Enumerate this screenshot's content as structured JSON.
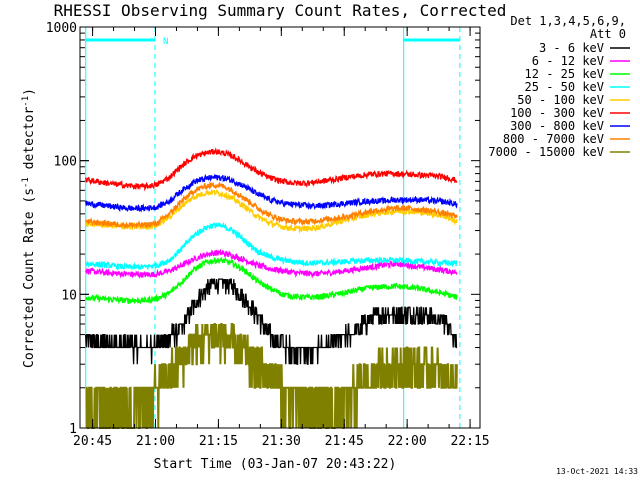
{
  "chart_data": {
    "type": "line",
    "title": "RHESSI Observing Summary Count Rates, Corrected",
    "xlabel": "Start Time (03-Jan-07 20:43:22)",
    "ylabel_main": "Corrected Count Rate (s",
    "ylabel_sup1": "-1",
    "ylabel_mid": " detector",
    "ylabel_sup2": "-1",
    "ylabel_end": ")",
    "yscale": "log",
    "ylim": [
      1,
      1000
    ],
    "xlim_minutes": [
      -1.37,
      94
    ],
    "x_tick_labels": [
      "20:45",
      "21:00",
      "21:15",
      "21:30",
      "21:45",
      "22:00",
      "22:15"
    ],
    "x_ticks_minutes": [
      1.63,
      16.63,
      31.63,
      46.63,
      61.63,
      76.63,
      91.63
    ],
    "y_tick_labels": [
      "1",
      "10",
      "100",
      "1000"
    ],
    "y_ticks": [
      1,
      10,
      100,
      1000
    ],
    "legend_header": [
      "Det 1,3,4,5,6,9,",
      "Att 0"
    ],
    "legend_position": "top-right outside",
    "timestamp": "13-Oct-2021 14:33",
    "marker_N": "N",
    "vertical_lines_minutes": [
      0,
      16.5,
      75.8,
      89.2
    ],
    "series": [
      {
        "name": "3 - 6 keV",
        "color": "#000000",
        "x": [
          0,
          5,
          10,
          14,
          17,
          20,
          23,
          26,
          29,
          31,
          33,
          35,
          38,
          41,
          44,
          47,
          50,
          53,
          56,
          59,
          62,
          65,
          68,
          71,
          74,
          77,
          80,
          83,
          86,
          88.5
        ],
        "y": [
          4.5,
          4.3,
          4.2,
          4.0,
          4.2,
          4.6,
          5.8,
          8.5,
          11.2,
          12.5,
          12.3,
          11.5,
          9.2,
          6.8,
          5.0,
          4.2,
          3.8,
          3.8,
          4.0,
          4.3,
          4.8,
          5.6,
          6.5,
          7.2,
          7.3,
          7.2,
          7.0,
          6.8,
          6.0,
          4.6
        ]
      },
      {
        "name": "6 - 12 keV",
        "color": "#ff00ff",
        "x": [
          0,
          5,
          10,
          14,
          17,
          20,
          23,
          26,
          29,
          31,
          33,
          35,
          38,
          41,
          44,
          47,
          50,
          53,
          56,
          59,
          62,
          65,
          68,
          71,
          74,
          77,
          80,
          83,
          86,
          88.5
        ],
        "y": [
          15,
          14.5,
          14.2,
          14,
          14.2,
          15,
          16.5,
          18.5,
          20,
          20.5,
          20.2,
          19.5,
          18,
          16.5,
          15.5,
          15,
          14.5,
          14.3,
          14.3,
          14.6,
          15,
          15.5,
          16,
          16.5,
          17,
          16.5,
          16,
          15.5,
          15,
          14.5
        ]
      },
      {
        "name": "12 - 25 keV",
        "color": "#00ff00",
        "x": [
          0,
          5,
          10,
          14,
          17,
          20,
          23,
          26,
          29,
          31,
          33,
          35,
          38,
          41,
          44,
          47,
          50,
          53,
          56,
          59,
          62,
          65,
          68,
          71,
          74,
          77,
          80,
          83,
          86,
          88.5
        ],
        "y": [
          9.5,
          9.2,
          9.0,
          9.0,
          9.3,
          10.2,
          12.5,
          15.5,
          17.5,
          18,
          17.8,
          17,
          15,
          12.5,
          11,
          10,
          9.6,
          9.5,
          9.6,
          9.9,
          10.3,
          10.8,
          11.2,
          11.4,
          11.5,
          11.3,
          11,
          10.5,
          10,
          9.5
        ]
      },
      {
        "name": "25 - 50 keV",
        "color": "#00ffff",
        "x": [
          0,
          5,
          10,
          14,
          17,
          20,
          23,
          26,
          29,
          31,
          33,
          35,
          38,
          41,
          44,
          47,
          50,
          53,
          56,
          59,
          62,
          65,
          68,
          71,
          74,
          77,
          80,
          83,
          86,
          88.5
        ],
        "y": [
          17,
          16.5,
          16,
          16,
          16.5,
          18,
          22,
          28,
          32,
          33,
          32,
          30,
          25,
          21,
          19,
          18,
          17.5,
          17.2,
          17.2,
          17.4,
          17.6,
          17.8,
          18,
          18,
          18,
          17.8,
          17.6,
          17.4,
          17.2,
          17
        ]
      },
      {
        "name": "50 - 100 keV",
        "color": "#ffcc00",
        "x": [
          0,
          5,
          10,
          14,
          17,
          20,
          23,
          26,
          29,
          31,
          33,
          35,
          38,
          41,
          44,
          47,
          50,
          53,
          56,
          59,
          62,
          65,
          68,
          71,
          74,
          77,
          80,
          83,
          86,
          88.5
        ],
        "y": [
          34,
          33,
          32,
          32,
          33,
          38,
          46,
          54,
          58,
          58,
          56,
          52,
          45,
          38,
          34,
          32,
          31,
          31,
          32,
          34,
          36,
          38,
          40,
          41,
          42,
          42,
          41,
          40,
          38,
          35
        ]
      },
      {
        "name": "100 - 300 keV",
        "color": "#ff0000",
        "x": [
          0,
          5,
          10,
          14,
          17,
          20,
          23,
          26,
          29,
          31,
          33,
          35,
          38,
          41,
          44,
          47,
          50,
          53,
          56,
          59,
          62,
          65,
          68,
          71,
          74,
          77,
          80,
          83,
          86,
          88.5
        ],
        "y": [
          72,
          68,
          65,
          64,
          66,
          75,
          92,
          108,
          115,
          117,
          114,
          108,
          95,
          82,
          74,
          70,
          68,
          68,
          70,
          72,
          75,
          77,
          79,
          80,
          80,
          79,
          78,
          77,
          75,
          71
        ]
      },
      {
        "name": "300 - 800 keV",
        "color": "#0000ff",
        "x": [
          0,
          5,
          10,
          14,
          17,
          20,
          23,
          26,
          29,
          31,
          33,
          35,
          38,
          41,
          44,
          47,
          50,
          53,
          56,
          59,
          62,
          65,
          68,
          71,
          74,
          77,
          80,
          83,
          86,
          88.5
        ],
        "y": [
          48,
          46,
          44,
          44,
          45,
          50,
          60,
          70,
          74,
          75,
          74,
          71,
          64,
          56,
          51,
          48,
          47,
          46,
          46,
          47,
          48,
          49,
          50,
          50,
          51,
          51,
          51,
          50,
          49,
          47
        ]
      },
      {
        "name": "800 - 7000 keV",
        "color": "#ff8000",
        "x": [
          0,
          5,
          10,
          14,
          17,
          20,
          23,
          26,
          29,
          31,
          33,
          35,
          38,
          41,
          44,
          47,
          50,
          53,
          56,
          59,
          62,
          65,
          68,
          71,
          74,
          77,
          80,
          83,
          86,
          88.5
        ],
        "y": [
          35,
          34,
          33,
          33,
          34,
          40,
          50,
          60,
          65,
          66,
          64,
          60,
          52,
          44,
          39,
          36,
          35,
          35,
          36,
          37,
          38,
          40,
          42,
          43,
          44,
          44,
          43,
          42,
          40,
          38
        ]
      },
      {
        "name": "7000 - 15000 keV",
        "color": "#808000",
        "x": [
          0,
          5,
          10,
          14,
          17,
          20,
          23,
          26,
          29,
          31,
          33,
          35,
          38,
          41,
          44,
          47,
          50,
          53,
          56,
          59,
          62,
          65,
          68,
          71,
          74,
          77,
          80,
          83,
          86,
          88.5
        ],
        "y": [
          1.6,
          1.6,
          1.5,
          1.6,
          2.0,
          2.6,
          3.3,
          4.2,
          4.8,
          5.0,
          4.8,
          4.3,
          3.6,
          3.0,
          2.5,
          2.0,
          1.7,
          1.6,
          1.6,
          1.6,
          1.7,
          2.0,
          2.4,
          2.8,
          3.0,
          3.0,
          2.9,
          2.8,
          2.5,
          2.2
        ]
      }
    ],
    "attenuator_segments_minutes": [
      [
        0,
        16.5
      ],
      [
        75.8,
        89.2
      ]
    ],
    "attenuator_level": 800
  }
}
